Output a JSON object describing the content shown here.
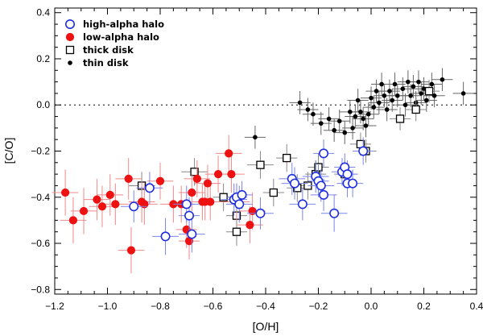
{
  "chart_data": {
    "type": "scatter",
    "title": "",
    "xlabel": "[O/H]",
    "ylabel": "[C/O]",
    "xlim": [
      -1.2,
      0.4
    ],
    "ylim": [
      -0.82,
      0.42
    ],
    "x_ticks": [
      -1.2,
      -1.0,
      -0.8,
      -0.6,
      -0.4,
      -0.2,
      0.0,
      0.2,
      0.4
    ],
    "y_ticks": [
      -0.8,
      -0.6,
      -0.4,
      -0.2,
      0.0,
      0.2,
      0.4
    ],
    "x_tick_labels": [
      "−1.2",
      "−1.0",
      "−0.8",
      "−0.6",
      "−0.4",
      "−0.2",
      "0.0",
      "0.2",
      "0.4"
    ],
    "y_tick_labels": [
      "−0.8",
      "−0.6",
      "−0.4",
      "−0.2",
      "0.0",
      "0.2",
      "0.4"
    ],
    "reference_line": {
      "y": 0.0,
      "style": "dotted"
    },
    "legend_position": "top-left",
    "series": [
      {
        "name": "high-alpha halo",
        "marker": "open-circle",
        "color": "#1f2fe0",
        "errorbar_color": "#7a86e8",
        "points": [
          {
            "x": -0.84,
            "y": -0.36,
            "xerr": 0.05,
            "yerr": 0.07
          },
          {
            "x": -0.9,
            "y": -0.44,
            "xerr": 0.05,
            "yerr": 0.07
          },
          {
            "x": -0.78,
            "y": -0.57,
            "xerr": 0.05,
            "yerr": 0.08
          },
          {
            "x": -0.7,
            "y": -0.43,
            "xerr": 0.05,
            "yerr": 0.08
          },
          {
            "x": -0.69,
            "y": -0.48,
            "xerr": 0.04,
            "yerr": 0.08
          },
          {
            "x": -0.68,
            "y": -0.56,
            "xerr": 0.05,
            "yerr": 0.08
          },
          {
            "x": -0.52,
            "y": -0.41,
            "xerr": 0.05,
            "yerr": 0.07
          },
          {
            "x": -0.51,
            "y": -0.4,
            "xerr": 0.04,
            "yerr": 0.06
          },
          {
            "x": -0.49,
            "y": -0.39,
            "xerr": 0.04,
            "yerr": 0.06
          },
          {
            "x": -0.5,
            "y": -0.43,
            "xerr": 0.05,
            "yerr": 0.08
          },
          {
            "x": -0.42,
            "y": -0.47,
            "xerr": 0.05,
            "yerr": 0.07
          },
          {
            "x": -0.3,
            "y": -0.32,
            "xerr": 0.05,
            "yerr": 0.07
          },
          {
            "x": -0.29,
            "y": -0.34,
            "xerr": 0.05,
            "yerr": 0.07
          },
          {
            "x": -0.26,
            "y": -0.43,
            "xerr": 0.05,
            "yerr": 0.07
          },
          {
            "x": -0.21,
            "y": -0.31,
            "xerr": 0.05,
            "yerr": 0.07
          },
          {
            "x": -0.2,
            "y": -0.33,
            "xerr": 0.04,
            "yerr": 0.07
          },
          {
            "x": -0.18,
            "y": -0.21,
            "xerr": 0.04,
            "yerr": 0.06
          },
          {
            "x": -0.19,
            "y": -0.35,
            "xerr": 0.05,
            "yerr": 0.07
          },
          {
            "x": -0.18,
            "y": -0.39,
            "xerr": 0.05,
            "yerr": 0.07
          },
          {
            "x": -0.14,
            "y": -0.47,
            "xerr": 0.05,
            "yerr": 0.08
          },
          {
            "x": -0.11,
            "y": -0.29,
            "xerr": 0.04,
            "yerr": 0.06
          },
          {
            "x": -0.1,
            "y": -0.27,
            "xerr": 0.04,
            "yerr": 0.06
          },
          {
            "x": -0.09,
            "y": -0.3,
            "xerr": 0.04,
            "yerr": 0.06
          },
          {
            "x": -0.09,
            "y": -0.34,
            "xerr": 0.04,
            "yerr": 0.06
          },
          {
            "x": -0.07,
            "y": -0.34,
            "xerr": 0.04,
            "yerr": 0.06
          },
          {
            "x": -0.03,
            "y": -0.2,
            "xerr": 0.04,
            "yerr": 0.06
          }
        ]
      },
      {
        "name": "low-alpha halo",
        "marker": "filled-circle",
        "color": "#ee1111",
        "errorbar_color": "#f08888",
        "points": [
          {
            "x": -1.16,
            "y": -0.38,
            "xerr": 0.05,
            "yerr": 0.1
          },
          {
            "x": -1.13,
            "y": -0.5,
            "xerr": 0.05,
            "yerr": 0.1
          },
          {
            "x": -1.09,
            "y": -0.46,
            "xerr": 0.05,
            "yerr": 0.1
          },
          {
            "x": -1.04,
            "y": -0.41,
            "xerr": 0.05,
            "yerr": 0.09
          },
          {
            "x": -1.02,
            "y": -0.44,
            "xerr": 0.05,
            "yerr": 0.09
          },
          {
            "x": -0.99,
            "y": -0.39,
            "xerr": 0.05,
            "yerr": 0.09
          },
          {
            "x": -0.97,
            "y": -0.43,
            "xerr": 0.05,
            "yerr": 0.09
          },
          {
            "x": -0.92,
            "y": -0.32,
            "xerr": 0.05,
            "yerr": 0.09
          },
          {
            "x": -0.91,
            "y": -0.63,
            "xerr": 0.05,
            "yerr": 0.1
          },
          {
            "x": -0.87,
            "y": -0.42,
            "xerr": 0.05,
            "yerr": 0.09
          },
          {
            "x": -0.86,
            "y": -0.43,
            "xerr": 0.05,
            "yerr": 0.09
          },
          {
            "x": -0.8,
            "y": -0.33,
            "xerr": 0.05,
            "yerr": 0.08
          },
          {
            "x": -0.75,
            "y": -0.43,
            "xerr": 0.05,
            "yerr": 0.08
          },
          {
            "x": -0.72,
            "y": -0.43,
            "xerr": 0.05,
            "yerr": 0.08
          },
          {
            "x": -0.7,
            "y": -0.54,
            "xerr": 0.04,
            "yerr": 0.08
          },
          {
            "x": -0.69,
            "y": -0.59,
            "xerr": 0.04,
            "yerr": 0.08
          },
          {
            "x": -0.68,
            "y": -0.38,
            "xerr": 0.05,
            "yerr": 0.08
          },
          {
            "x": -0.66,
            "y": -0.32,
            "xerr": 0.05,
            "yerr": 0.08
          },
          {
            "x": -0.64,
            "y": -0.42,
            "xerr": 0.05,
            "yerr": 0.08
          },
          {
            "x": -0.63,
            "y": -0.42,
            "xerr": 0.05,
            "yerr": 0.08
          },
          {
            "x": -0.62,
            "y": -0.34,
            "xerr": 0.05,
            "yerr": 0.08
          },
          {
            "x": -0.61,
            "y": -0.42,
            "xerr": 0.05,
            "yerr": 0.08
          },
          {
            "x": -0.58,
            "y": -0.3,
            "xerr": 0.05,
            "yerr": 0.08
          },
          {
            "x": -0.54,
            "y": -0.21,
            "xerr": 0.05,
            "yerr": 0.08
          },
          {
            "x": -0.53,
            "y": -0.3,
            "xerr": 0.05,
            "yerr": 0.08
          },
          {
            "x": -0.51,
            "y": -0.42,
            "xerr": 0.05,
            "yerr": 0.08
          },
          {
            "x": -0.46,
            "y": -0.52,
            "xerr": 0.05,
            "yerr": 0.08
          },
          {
            "x": -0.45,
            "y": -0.46,
            "xerr": 0.05,
            "yerr": 0.08
          }
        ]
      },
      {
        "name": "thick disk",
        "marker": "open-square",
        "color": "#000000",
        "errorbar_color": "#888888",
        "points": [
          {
            "x": -0.87,
            "y": -0.35,
            "xerr": 0.05,
            "yerr": 0.06
          },
          {
            "x": -0.67,
            "y": -0.29,
            "xerr": 0.05,
            "yerr": 0.06
          },
          {
            "x": -0.56,
            "y": -0.4,
            "xerr": 0.04,
            "yerr": 0.06
          },
          {
            "x": -0.51,
            "y": -0.48,
            "xerr": 0.04,
            "yerr": 0.06
          },
          {
            "x": -0.51,
            "y": -0.55,
            "xerr": 0.04,
            "yerr": 0.06
          },
          {
            "x": -0.42,
            "y": -0.26,
            "xerr": 0.05,
            "yerr": 0.06
          },
          {
            "x": -0.37,
            "y": -0.38,
            "xerr": 0.04,
            "yerr": 0.06
          },
          {
            "x": -0.32,
            "y": -0.23,
            "xerr": 0.04,
            "yerr": 0.06
          },
          {
            "x": -0.28,
            "y": -0.36,
            "xerr": 0.04,
            "yerr": 0.06
          },
          {
            "x": -0.24,
            "y": -0.35,
            "xerr": 0.04,
            "yerr": 0.06
          },
          {
            "x": -0.21,
            "y": -0.3,
            "xerr": 0.04,
            "yerr": 0.06
          },
          {
            "x": -0.2,
            "y": -0.27,
            "xerr": 0.04,
            "yerr": 0.06
          },
          {
            "x": -0.1,
            "y": -0.3,
            "xerr": 0.04,
            "yerr": 0.06
          },
          {
            "x": -0.04,
            "y": -0.17,
            "xerr": 0.04,
            "yerr": 0.05
          },
          {
            "x": -0.02,
            "y": -0.2,
            "xerr": 0.04,
            "yerr": 0.05
          },
          {
            "x": 0.11,
            "y": -0.06,
            "xerr": 0.04,
            "yerr": 0.05
          },
          {
            "x": 0.17,
            "y": -0.02,
            "xerr": 0.04,
            "yerr": 0.05
          },
          {
            "x": 0.22,
            "y": 0.06,
            "xerr": 0.04,
            "yerr": 0.05
          }
        ]
      },
      {
        "name": "thin disk",
        "marker": "small-filled-circle",
        "color": "#000000",
        "errorbar_color": "#666666",
        "points": [
          {
            "x": -0.44,
            "y": -0.14,
            "xerr": 0.04,
            "yerr": 0.05
          },
          {
            "x": -0.27,
            "y": 0.01,
            "xerr": 0.04,
            "yerr": 0.05
          },
          {
            "x": -0.24,
            "y": -0.02,
            "xerr": 0.04,
            "yerr": 0.05
          },
          {
            "x": -0.22,
            "y": -0.04,
            "xerr": 0.04,
            "yerr": 0.05
          },
          {
            "x": -0.19,
            "y": -0.08,
            "xerr": 0.04,
            "yerr": 0.05
          },
          {
            "x": -0.16,
            "y": -0.06,
            "xerr": 0.04,
            "yerr": 0.05
          },
          {
            "x": -0.14,
            "y": -0.11,
            "xerr": 0.04,
            "yerr": 0.05
          },
          {
            "x": -0.12,
            "y": -0.07,
            "xerr": 0.04,
            "yerr": 0.05
          },
          {
            "x": -0.1,
            "y": -0.12,
            "xerr": 0.04,
            "yerr": 0.05
          },
          {
            "x": -0.08,
            "y": -0.03,
            "xerr": 0.04,
            "yerr": 0.05
          },
          {
            "x": -0.07,
            "y": -0.1,
            "xerr": 0.04,
            "yerr": 0.05
          },
          {
            "x": -0.06,
            "y": -0.05,
            "xerr": 0.04,
            "yerr": 0.05
          },
          {
            "x": -0.05,
            "y": 0.02,
            "xerr": 0.04,
            "yerr": 0.05
          },
          {
            "x": -0.04,
            "y": -0.03,
            "xerr": 0.04,
            "yerr": 0.05
          },
          {
            "x": -0.03,
            "y": -0.06,
            "xerr": 0.04,
            "yerr": 0.05
          },
          {
            "x": -0.02,
            "y": -0.09,
            "xerr": 0.04,
            "yerr": 0.05
          },
          {
            "x": -0.01,
            "y": -0.04,
            "xerr": 0.04,
            "yerr": 0.05
          },
          {
            "x": 0.0,
            "y": 0.03,
            "xerr": 0.04,
            "yerr": 0.05
          },
          {
            "x": 0.01,
            "y": -0.01,
            "xerr": 0.04,
            "yerr": 0.05
          },
          {
            "x": 0.02,
            "y": 0.06,
            "xerr": 0.04,
            "yerr": 0.05
          },
          {
            "x": 0.03,
            "y": 0.01,
            "xerr": 0.04,
            "yerr": 0.05
          },
          {
            "x": 0.04,
            "y": 0.09,
            "xerr": 0.04,
            "yerr": 0.05
          },
          {
            "x": 0.05,
            "y": 0.04,
            "xerr": 0.04,
            "yerr": 0.05
          },
          {
            "x": 0.06,
            "y": -0.02,
            "xerr": 0.04,
            "yerr": 0.05
          },
          {
            "x": 0.07,
            "y": 0.06,
            "xerr": 0.04,
            "yerr": 0.05
          },
          {
            "x": 0.08,
            "y": 0.02,
            "xerr": 0.04,
            "yerr": 0.05
          },
          {
            "x": 0.09,
            "y": 0.09,
            "xerr": 0.04,
            "yerr": 0.05
          },
          {
            "x": 0.1,
            "y": 0.04,
            "xerr": 0.04,
            "yerr": 0.05
          },
          {
            "x": 0.12,
            "y": 0.07,
            "xerr": 0.04,
            "yerr": 0.05
          },
          {
            "x": 0.13,
            "y": 0.0,
            "xerr": 0.04,
            "yerr": 0.05
          },
          {
            "x": 0.14,
            "y": 0.1,
            "xerr": 0.04,
            "yerr": 0.05
          },
          {
            "x": 0.15,
            "y": 0.04,
            "xerr": 0.04,
            "yerr": 0.05
          },
          {
            "x": 0.16,
            "y": 0.08,
            "xerr": 0.04,
            "yerr": 0.05
          },
          {
            "x": 0.17,
            "y": 0.01,
            "xerr": 0.04,
            "yerr": 0.05
          },
          {
            "x": 0.18,
            "y": 0.1,
            "xerr": 0.04,
            "yerr": 0.05
          },
          {
            "x": 0.19,
            "y": 0.05,
            "xerr": 0.04,
            "yerr": 0.05
          },
          {
            "x": 0.2,
            "y": 0.07,
            "xerr": 0.04,
            "yerr": 0.05
          },
          {
            "x": 0.21,
            "y": 0.02,
            "xerr": 0.04,
            "yerr": 0.05
          },
          {
            "x": 0.23,
            "y": 0.09,
            "xerr": 0.04,
            "yerr": 0.05
          },
          {
            "x": 0.24,
            "y": 0.04,
            "xerr": 0.04,
            "yerr": 0.05
          },
          {
            "x": 0.27,
            "y": 0.11,
            "xerr": 0.04,
            "yerr": 0.05
          },
          {
            "x": 0.35,
            "y": 0.05,
            "xerr": 0.04,
            "yerr": 0.05
          }
        ]
      }
    ]
  }
}
